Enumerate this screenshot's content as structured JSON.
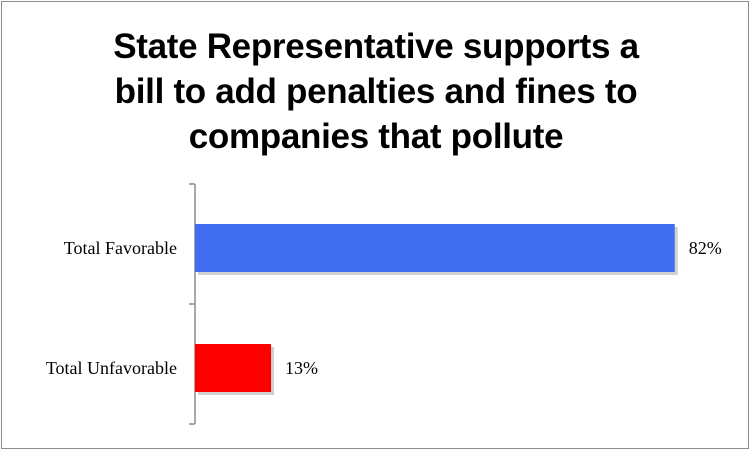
{
  "chart_data": {
    "type": "bar",
    "orientation": "horizontal",
    "title_lines": [
      "State Representative supports a",
      "bill to add penalties and fines to",
      "companies that pollute"
    ],
    "categories": [
      "Total Favorable",
      "Total Unfavorable"
    ],
    "values": [
      82,
      13
    ],
    "value_labels": [
      "82%",
      "13%"
    ],
    "colors": [
      "#3f6cf0",
      "#ff0000"
    ],
    "xlim": [
      0,
      100
    ],
    "grid": false,
    "legend": "none"
  }
}
